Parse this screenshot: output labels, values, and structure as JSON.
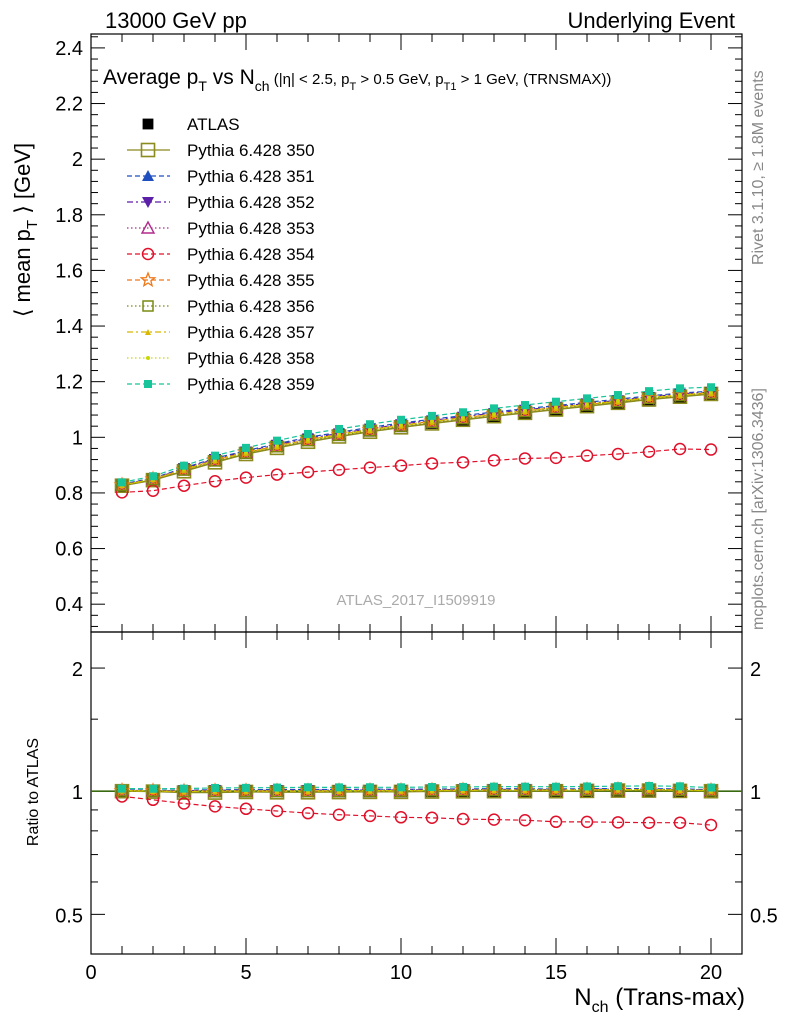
{
  "header": {
    "left": "13000 GeV pp",
    "right": "Underlying Event"
  },
  "side_labels": {
    "rivet": "Rivet 3.1.10, ≥ 1.8M events",
    "mcplots": "mcplots.cern.ch [arXiv:1306.3436]"
  },
  "watermark": "ATLAS_2017_I1509919",
  "colors": {
    "atlas": "#000000",
    "p350": "#8b8b1e",
    "p351": "#1f4fbf",
    "p352": "#5b1fa8",
    "p353": "#b02a8c",
    "p354": "#e0102a",
    "p355": "#f07818",
    "p356": "#7a8a10",
    "p357": "#d8b800",
    "p358": "#c8d800",
    "p359": "#18c49a"
  },
  "chart_data": [
    {
      "type": "line",
      "panel": "main",
      "title": {
        "main": "Average p",
        "sub1": "T",
        "mid": " vs N",
        "sub2": "ch",
        "small_a": " (|η| < 2.5, p",
        "sub3": "T",
        "small_b": " > 0.5 GeV, p",
        "sub4": "T1",
        "small_c": " > 1 GeV, (TRNSMAX))"
      },
      "ylabel": "⟨ mean p",
      "ylabel_sub": "T",
      "ylabel_tail": " ⟩ [GeV]",
      "xlim": [
        0,
        21
      ],
      "ylim": [
        0.3,
        2.45
      ],
      "yticks": [
        "0.4",
        "0.6",
        "0.8",
        "1",
        "1.2",
        "1.4",
        "1.6",
        "1.8",
        "2",
        "2.2",
        "2.4"
      ],
      "x": [
        1,
        2,
        3,
        4,
        5,
        6,
        7,
        8,
        9,
        10,
        11,
        12,
        13,
        14,
        15,
        16,
        17,
        18,
        19,
        20
      ],
      "atlas": {
        "name": "ATLAS",
        "values": [
          0.826,
          0.848,
          0.885,
          0.917,
          0.944,
          0.968,
          0.99,
          1.008,
          1.024,
          1.04,
          1.052,
          1.064,
          1.076,
          1.088,
          1.1,
          1.11,
          1.12,
          1.132,
          1.144,
          1.156
        ]
      },
      "series": [
        {
          "name": "Pythia 6.428 350",
          "key": "p350",
          "marker": "open-square",
          "dash": "",
          "values": [
            0.826,
            0.846,
            0.878,
            0.91,
            0.94,
            0.962,
            0.984,
            1.003,
            1.02,
            1.036,
            1.05,
            1.063,
            1.076,
            1.088,
            1.1,
            1.112,
            1.124,
            1.136,
            1.146,
            1.156
          ]
        },
        {
          "name": "Pythia 6.428 351",
          "key": "p351",
          "marker": "filled-triangle",
          "dash": "5,3",
          "values": [
            0.832,
            0.853,
            0.89,
            0.925,
            0.952,
            0.977,
            1.0,
            1.018,
            1.036,
            1.051,
            1.065,
            1.078,
            1.091,
            1.103,
            1.114,
            1.126,
            1.137,
            1.149,
            1.159,
            1.166
          ]
        },
        {
          "name": "Pythia 6.428 352",
          "key": "p352",
          "marker": "filled-triangle-down",
          "dash": "6,3,2,3",
          "values": [
            0.83,
            0.851,
            0.887,
            0.922,
            0.949,
            0.973,
            0.996,
            1.014,
            1.031,
            1.047,
            1.061,
            1.074,
            1.087,
            1.099,
            1.11,
            1.122,
            1.133,
            1.145,
            1.156,
            1.163
          ]
        },
        {
          "name": "Pythia 6.428 353",
          "key": "p353",
          "marker": "open-triangle",
          "dash": "1.5,2.5",
          "values": [
            0.829,
            0.85,
            0.886,
            0.92,
            0.947,
            0.971,
            0.993,
            1.012,
            1.029,
            1.045,
            1.059,
            1.072,
            1.084,
            1.096,
            1.108,
            1.119,
            1.13,
            1.142,
            1.152,
            1.16
          ]
        },
        {
          "name": "Pythia 6.428 354",
          "key": "p354",
          "marker": "open-circle",
          "dash": "5,3",
          "values": [
            0.802,
            0.808,
            0.826,
            0.842,
            0.855,
            0.866,
            0.875,
            0.883,
            0.891,
            0.898,
            0.906,
            0.91,
            0.917,
            0.924,
            0.926,
            0.934,
            0.94,
            0.948,
            0.958,
            0.956
          ]
        },
        {
          "name": "Pythia 6.428 355",
          "key": "p355",
          "marker": "open-star",
          "dash": "5,3",
          "values": [
            0.828,
            0.849,
            0.884,
            0.918,
            0.945,
            0.969,
            0.991,
            1.01,
            1.027,
            1.043,
            1.057,
            1.07,
            1.083,
            1.095,
            1.107,
            1.118,
            1.13,
            1.142,
            1.152,
            1.16
          ]
        },
        {
          "name": "Pythia 6.428 356",
          "key": "p356",
          "marker": "open-square-small",
          "dash": "1.5,2.5",
          "values": [
            0.827,
            0.848,
            0.882,
            0.915,
            0.943,
            0.966,
            0.988,
            1.007,
            1.024,
            1.04,
            1.054,
            1.067,
            1.08,
            1.092,
            1.104,
            1.116,
            1.128,
            1.14,
            1.15,
            1.158
          ]
        },
        {
          "name": "Pythia 6.428 357",
          "key": "p357",
          "marker": "tri-small",
          "dash": "6,3,2,3",
          "values": [
            0.828,
            0.849,
            0.883,
            0.917,
            0.944,
            0.968,
            0.99,
            1.009,
            1.026,
            1.042,
            1.056,
            1.069,
            1.082,
            1.094,
            1.106,
            1.117,
            1.129,
            1.141,
            1.151,
            1.159
          ]
        },
        {
          "name": "Pythia 6.428 358",
          "key": "p358",
          "marker": "dot-small",
          "dash": "1.5,2.5",
          "values": [
            0.829,
            0.85,
            0.885,
            0.919,
            0.946,
            0.97,
            0.992,
            1.011,
            1.028,
            1.044,
            1.058,
            1.071,
            1.084,
            1.096,
            1.108,
            1.119,
            1.131,
            1.143,
            1.153,
            1.161
          ]
        },
        {
          "name": "Pythia 6.428 359",
          "key": "p359",
          "marker": "filled-square-small",
          "dash": "5,3",
          "values": [
            0.838,
            0.86,
            0.898,
            0.934,
            0.962,
            0.988,
            1.012,
            1.03,
            1.047,
            1.063,
            1.077,
            1.09,
            1.104,
            1.116,
            1.128,
            1.14,
            1.152,
            1.166,
            1.176,
            1.18
          ]
        }
      ],
      "legend": "top-left"
    },
    {
      "type": "line",
      "panel": "ratio",
      "ylabel": "Ratio to ATLAS",
      "xlabel_main": "N",
      "xlabel_sub": "ch",
      "xlabel_tail": " (Trans-max)",
      "xlim": [
        0,
        21
      ],
      "ylim": [
        0.4,
        2.45
      ],
      "yscale": "log",
      "yticks": [
        "0.5",
        "1",
        "2"
      ],
      "xticks": [
        "0",
        "5",
        "10",
        "15",
        "20"
      ],
      "reference": 1
    }
  ]
}
